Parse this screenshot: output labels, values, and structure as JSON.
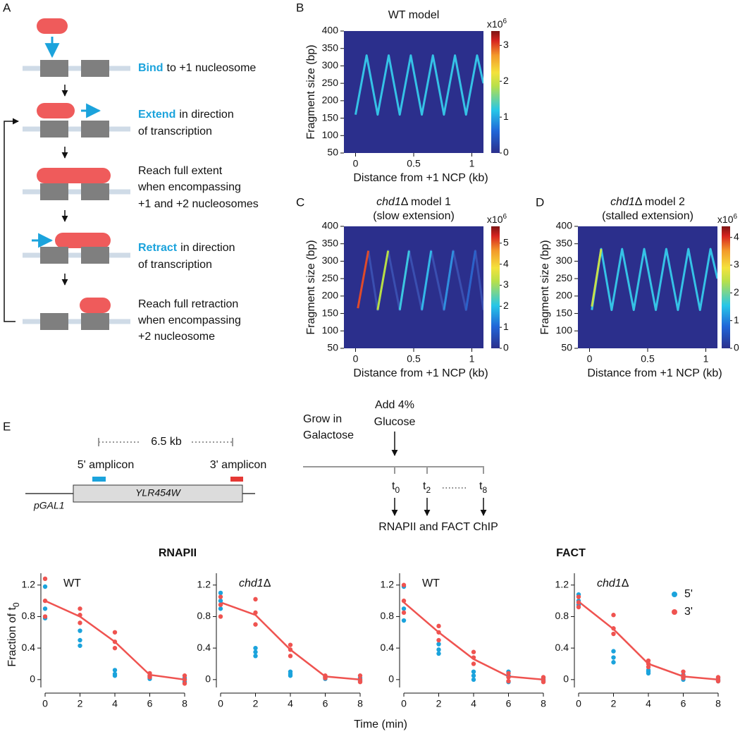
{
  "panel_labels": [
    "A",
    "B",
    "C",
    "D",
    "E"
  ],
  "schematic": {
    "steps": [
      {
        "keyword": "Bind",
        "lines": [
          "to +1 nucleosome"
        ]
      },
      {
        "keyword": "Extend",
        "lines": [
          "in direction",
          "of transcription"
        ]
      },
      {
        "lines": [
          "Reach full extent",
          "when encompassing",
          "+1 and +2 nucleosomes"
        ]
      },
      {
        "keyword": "Retract",
        "lines": [
          "in direction",
          "of transcription"
        ]
      },
      {
        "lines": [
          "Reach full retraction",
          "when encompassing",
          "+2 nucleosome"
        ]
      }
    ]
  },
  "gene_diagram": {
    "distance": "6.5 kb",
    "amplicons": [
      "5' amplicon",
      "3' amplicon"
    ],
    "gene": "YLR454W",
    "promoter": "pGAL1"
  },
  "timeline": {
    "start": [
      "Grow in",
      "Galactose"
    ],
    "treatment": [
      "Add 4%",
      "Glucose"
    ],
    "ticks": [
      {
        "label": "t",
        "sub": "0"
      },
      {
        "label": "t",
        "sub": "2"
      },
      {
        "label": "t",
        "sub": "8"
      }
    ],
    "readout": "RNAPII and FACT ChIP"
  },
  "chip_groups": [
    "RNAPII",
    "FACT"
  ],
  "chip_axes": {
    "ylabel": "Fraction of t",
    "ylabel_sub": "0",
    "xlabel": "Time (min)"
  },
  "chart_data": [
    {
      "type": "heatmap",
      "title": "WT model",
      "xlabel": "Distance from +1 NCP (kb)",
      "ylabel": "Fragment size (bp)",
      "xlim": [
        -0.1,
        1.1
      ],
      "xticks": [
        0,
        0.5,
        1
      ],
      "ylim": [
        50,
        400
      ],
      "yticks": [
        50,
        100,
        150,
        200,
        250,
        300,
        350,
        400
      ],
      "background": "#2b2f8c",
      "colorbar": {
        "label": "x10",
        "label_sup": "6",
        "lim": [
          0,
          3.4
        ],
        "ticks": [
          0,
          1,
          2,
          3
        ]
      },
      "ridges": [
        {
          "x": [
            0,
            0.095,
            0.19,
            0.285,
            0.38,
            0.475,
            0.57,
            0.665,
            0.76,
            0.855,
            0.95,
            1.045,
            1.1
          ],
          "values": [
            160,
            330,
            160,
            330,
            160,
            330,
            160,
            330,
            160,
            330,
            160,
            330,
            250
          ],
          "color": "#35c2e6"
        }
      ]
    },
    {
      "type": "heatmap",
      "title_italic": "chd1",
      "title": "Δ model 1",
      "subtitle": "(slow extension)",
      "xlabel": "Distance from +1 NCP (kb)",
      "ylabel": "Fragment size (bp)",
      "xlim": [
        -0.1,
        1.1
      ],
      "xticks": [
        0,
        0.5,
        1
      ],
      "ylim": [
        50,
        400
      ],
      "yticks": [
        50,
        100,
        150,
        200,
        250,
        300,
        350,
        400
      ],
      "background": "#2b2f8c",
      "colorbar": {
        "label": "x10",
        "label_sup": "6",
        "lim": [
          0,
          5.8
        ],
        "ticks": [
          0,
          1,
          2,
          3,
          4,
          5
        ]
      },
      "ridges": [
        {
          "x": [
            0.11,
            0.19,
            0.28,
            0.38,
            0.46,
            0.57,
            0.65,
            0.76,
            0.84,
            0.95,
            1.03,
            1.1
          ],
          "values": [
            330,
            160,
            330,
            160,
            330,
            160,
            330,
            160,
            330,
            160,
            330,
            160
          ],
          "color": "#3a4fb0"
        },
        {
          "x": [
            0.02,
            0.11
          ],
          "values": [
            165,
            330
          ],
          "color": "#e04a2a"
        },
        {
          "x": [
            0.19,
            0.28
          ],
          "values": [
            160,
            330
          ],
          "color": "#b8de45"
        },
        {
          "x": [
            0.38,
            0.46
          ],
          "values": [
            160,
            330
          ],
          "color": "#3cc7e0"
        },
        {
          "x": [
            0.57,
            0.65
          ],
          "values": [
            160,
            330
          ],
          "color": "#33b8e8"
        },
        {
          "x": [
            0.76,
            0.84
          ],
          "values": [
            160,
            330
          ],
          "color": "#2f8fde"
        },
        {
          "x": [
            0.95,
            1.03
          ],
          "values": [
            160,
            330
          ],
          "color": "#2b62c9"
        }
      ]
    },
    {
      "type": "heatmap",
      "title_italic": "chd1",
      "title": "Δ model 2",
      "subtitle": "(stalled extension)",
      "xlabel": "Distance from +1 NCP (kb)",
      "ylabel": "Fragment size (bp)",
      "xlim": [
        -0.1,
        1.1
      ],
      "xticks": [
        0,
        0.5,
        1
      ],
      "ylim": [
        50,
        400
      ],
      "yticks": [
        50,
        100,
        150,
        200,
        250,
        300,
        350,
        400
      ],
      "background": "#2b2f8c",
      "colorbar": {
        "label": "x10",
        "label_sup": "6",
        "lim": [
          0,
          4.4
        ],
        "ticks": [
          0,
          1,
          2,
          3,
          4
        ]
      },
      "ridges": [
        {
          "x": [
            0.02,
            0.1,
            0.19,
            0.28,
            0.38,
            0.47,
            0.57,
            0.66,
            0.76,
            0.85,
            0.95,
            1.04,
            1.1
          ],
          "values": [
            160,
            335,
            160,
            335,
            160,
            335,
            160,
            335,
            160,
            335,
            160,
            335,
            250
          ],
          "color": "#35c2e6"
        },
        {
          "x": [
            0.02,
            0.1
          ],
          "values": [
            170,
            335
          ],
          "color": "#c8e04a"
        }
      ]
    },
    {
      "type": "chip",
      "label": "WT",
      "xlim": [
        0,
        8
      ],
      "xticks": [
        0,
        2,
        4,
        6,
        8
      ],
      "ylim": [
        -0.1,
        1.35
      ],
      "yticks": [
        0,
        0.4,
        0.8,
        1.2
      ],
      "mean": {
        "x": [
          0,
          2,
          4,
          6,
          8
        ],
        "values": [
          1.0,
          0.8,
          0.48,
          0.06,
          0.0
        ],
        "color": "#ef5350"
      },
      "series": [
        {
          "name": "5'",
          "color": "#1ba3dc",
          "x": [
            0,
            0,
            0,
            2,
            2,
            2,
            4,
            4,
            4,
            6,
            6,
            6,
            8,
            8,
            8
          ],
          "values": [
            1.18,
            0.9,
            0.78,
            0.62,
            0.5,
            0.43,
            0.12,
            0.07,
            0.05,
            0.05,
            0.03,
            0.01,
            0.02,
            0,
            -0.03
          ]
        },
        {
          "name": "3'",
          "color": "#ef5350",
          "x": [
            0,
            0,
            0,
            2,
            2,
            2,
            4,
            4,
            4,
            6,
            6,
            6,
            8,
            8,
            8
          ],
          "values": [
            1.28,
            1.0,
            0.8,
            0.9,
            0.82,
            0.72,
            0.6,
            0.48,
            0.4,
            0.08,
            0.05,
            0.03,
            0.05,
            0,
            -0.05
          ]
        }
      ]
    },
    {
      "type": "chip",
      "label_italic": "chd1",
      "label": "Δ",
      "xlim": [
        0,
        8
      ],
      "xticks": [
        0,
        2,
        4,
        6,
        8
      ],
      "ylim": [
        -0.1,
        1.35
      ],
      "yticks": [
        0,
        0.4,
        0.8,
        1.2
      ],
      "mean": {
        "x": [
          0,
          2,
          4,
          6,
          8
        ],
        "values": [
          0.98,
          0.82,
          0.38,
          0.04,
          0.0
        ],
        "color": "#ef5350"
      },
      "series": [
        {
          "name": "5'",
          "color": "#1ba3dc",
          "x": [
            0,
            0,
            0,
            2,
            2,
            2,
            4,
            4,
            4,
            6,
            6,
            6,
            8,
            8,
            8
          ],
          "values": [
            1.1,
            1.0,
            0.9,
            0.4,
            0.35,
            0.3,
            0.1,
            0.07,
            0.05,
            0.04,
            0.03,
            0.01,
            0.02,
            0,
            -0.02
          ]
        },
        {
          "name": "3'",
          "color": "#ef5350",
          "x": [
            0,
            0,
            0,
            2,
            2,
            2,
            4,
            4,
            4,
            6,
            6,
            6,
            8,
            8,
            8
          ],
          "values": [
            1.05,
            0.95,
            0.8,
            1.02,
            0.85,
            0.7,
            0.44,
            0.38,
            0.3,
            0.05,
            0.03,
            0.02,
            0.05,
            0,
            -0.03
          ]
        }
      ]
    },
    {
      "type": "chip",
      "label": "WT",
      "xlim": [
        0,
        8
      ],
      "xticks": [
        0,
        2,
        4,
        6,
        8
      ],
      "ylim": [
        -0.1,
        1.35
      ],
      "yticks": [
        0,
        0.4,
        0.8,
        1.2
      ],
      "mean": {
        "x": [
          0,
          2,
          4,
          6,
          8
        ],
        "values": [
          0.98,
          0.6,
          0.26,
          0.04,
          0.0
        ],
        "color": "#ef5350"
      },
      "series": [
        {
          "name": "5'",
          "color": "#1ba3dc",
          "x": [
            0,
            0,
            0,
            2,
            2,
            2,
            4,
            4,
            4,
            6,
            6,
            6,
            8,
            8,
            8
          ],
          "values": [
            1.18,
            0.9,
            0.75,
            0.45,
            0.38,
            0.33,
            0.1,
            0.05,
            0.0,
            0.1,
            0.05,
            -0.03,
            0.02,
            0,
            -0.02
          ]
        },
        {
          "name": "3'",
          "color": "#ef5350",
          "x": [
            0,
            0,
            0,
            2,
            2,
            2,
            4,
            4,
            4,
            6,
            6,
            6,
            8,
            8,
            8
          ],
          "values": [
            1.2,
            1.0,
            0.85,
            0.68,
            0.6,
            0.5,
            0.35,
            0.28,
            0.2,
            0.08,
            0.03,
            -0.02,
            0.03,
            0,
            -0.03
          ]
        }
      ]
    },
    {
      "type": "chip",
      "label_italic": "chd1",
      "label": "Δ",
      "legend": true,
      "xlim": [
        0,
        8
      ],
      "xticks": [
        0,
        2,
        4,
        6,
        8
      ],
      "ylim": [
        -0.1,
        1.35
      ],
      "yticks": [
        0,
        0.4,
        0.8,
        1.2
      ],
      "mean": {
        "x": [
          0,
          2,
          4,
          6,
          8
        ],
        "values": [
          0.99,
          0.64,
          0.2,
          0.04,
          0.0
        ],
        "color": "#ef5350"
      },
      "series": [
        {
          "name": "5'",
          "color": "#1ba3dc",
          "x": [
            0,
            0,
            0,
            2,
            2,
            2,
            4,
            4,
            4,
            6,
            6,
            6,
            8,
            8,
            8
          ],
          "values": [
            1.08,
            1.0,
            0.95,
            0.36,
            0.28,
            0.22,
            0.12,
            0.1,
            0.08,
            0.06,
            0.03,
            0.0,
            0.02,
            0,
            -0.02
          ]
        },
        {
          "name": "3'",
          "color": "#ef5350",
          "x": [
            0,
            0,
            0,
            2,
            2,
            2,
            4,
            4,
            4,
            6,
            6,
            6,
            8,
            8,
            8
          ],
          "values": [
            1.05,
            0.98,
            0.92,
            0.82,
            0.65,
            0.58,
            0.24,
            0.2,
            0.16,
            0.1,
            0.05,
            0.02,
            0.03,
            0,
            -0.02
          ]
        }
      ]
    }
  ]
}
